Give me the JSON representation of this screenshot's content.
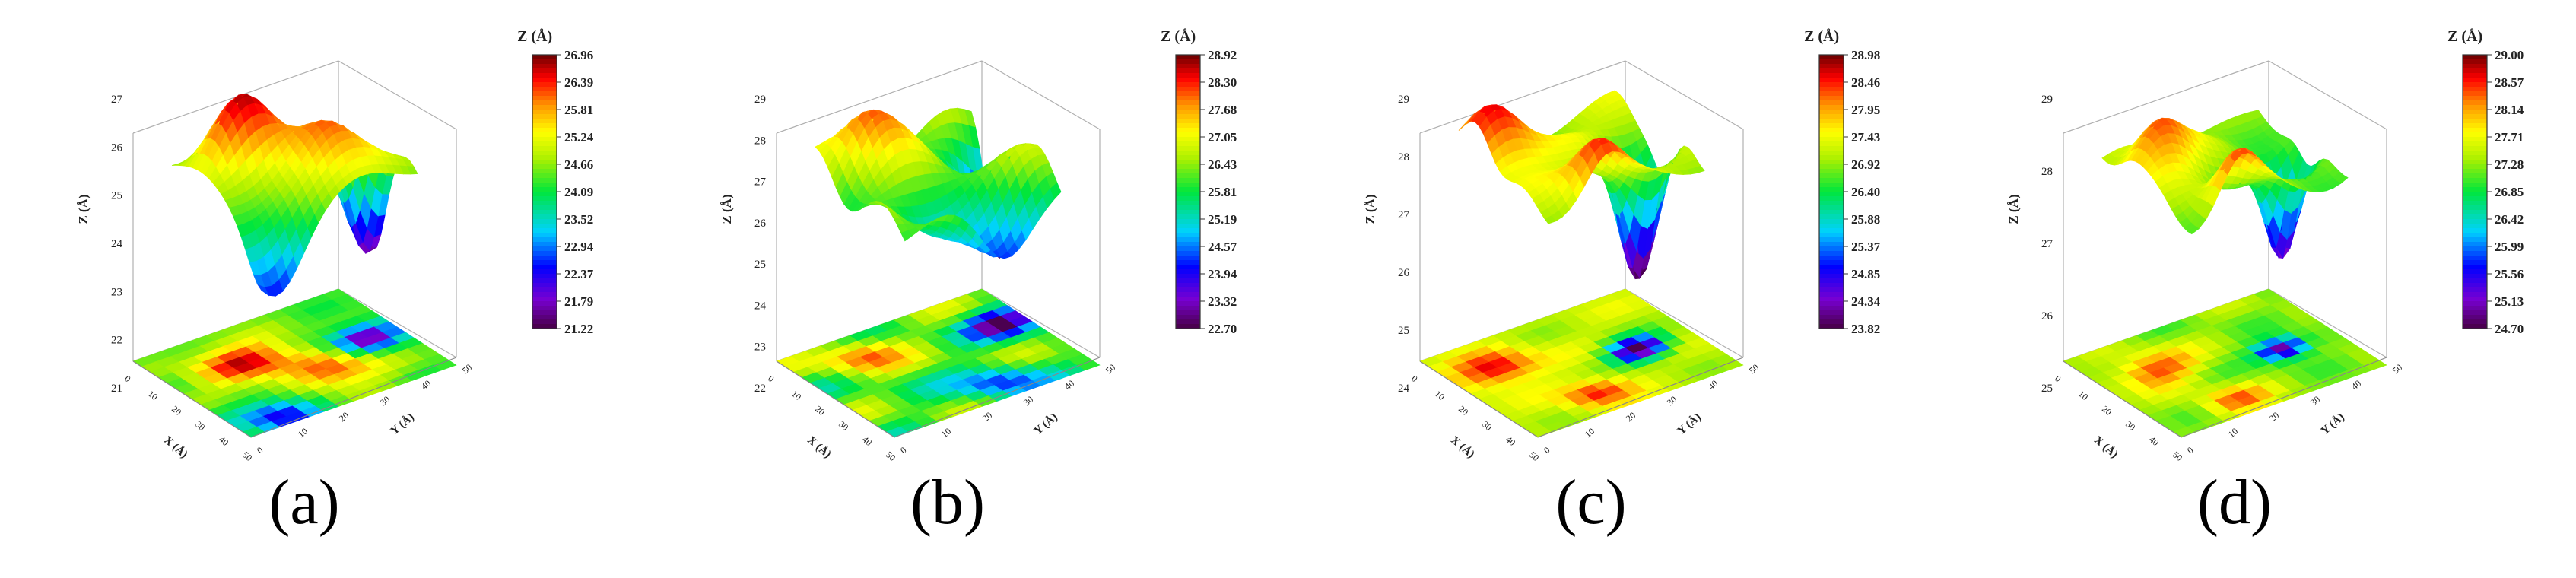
{
  "figure": {
    "panels": [
      {
        "label": "(a)",
        "colorbar_title": "Z (Å)",
        "zlabel": "Z (Å)",
        "xlabel": "X (Å)",
        "ylabel": "Y (Å)",
        "z_ticks": [
          "21",
          "22",
          "23",
          "24",
          "25",
          "26",
          "27"
        ],
        "colorbar_ticks": [
          "26.96",
          "26.39",
          "25.81",
          "25.24",
          "24.66",
          "24.09",
          "23.52",
          "22.94",
          "22.37",
          "21.79",
          "21.22"
        ]
      },
      {
        "label": "(b)",
        "colorbar_title": "Z (Å)",
        "zlabel": "Z (Å)",
        "xlabel": "X (Å)",
        "ylabel": "Y (Å)",
        "z_ticks": [
          "22",
          "23",
          "24",
          "25",
          "26",
          "27",
          "28",
          "29"
        ],
        "colorbar_ticks": [
          "28.92",
          "28.30",
          "27.68",
          "27.05",
          "26.43",
          "25.81",
          "25.19",
          "24.57",
          "23.94",
          "23.32",
          "22.70"
        ]
      },
      {
        "label": "(c)",
        "colorbar_title": "Z (Å)",
        "zlabel": "Z (Å)",
        "xlabel": "X (Å)",
        "ylabel": "Y (Å)",
        "z_ticks": [
          "24",
          "25",
          "26",
          "27",
          "28",
          "29"
        ],
        "colorbar_ticks": [
          "28.98",
          "28.46",
          "27.95",
          "27.43",
          "26.92",
          "26.40",
          "25.88",
          "25.37",
          "24.85",
          "24.34",
          "23.82"
        ]
      },
      {
        "label": "(d)",
        "colorbar_title": "Z (Å)",
        "zlabel": "Z (Å)",
        "xlabel": "X (Å)",
        "ylabel": "Y (Å)",
        "z_ticks": [
          "25",
          "26",
          "27",
          "28",
          "29"
        ],
        "colorbar_ticks": [
          "29.00",
          "28.57",
          "28.14",
          "27.71",
          "27.28",
          "26.85",
          "26.42",
          "25.99",
          "25.56",
          "25.13",
          "24.70"
        ]
      }
    ],
    "xy_ticks": [
      "0",
      "10",
      "20",
      "30",
      "40",
      "50"
    ]
  },
  "chart_data": [
    {
      "type": "heatmap",
      "subtype": "3d-surface-with-projected-contour",
      "panel": "(a)",
      "xlabel": "X (Å)",
      "ylabel": "Y (Å)",
      "zlabel": "Z (Å)",
      "x_range": [
        0,
        50
      ],
      "y_range": [
        0,
        50
      ],
      "zlim": [
        21,
        27
      ],
      "colorbar_title": "Z (Å)",
      "colorbar_range": [
        21.22,
        26.96
      ],
      "colorbar_levels": [
        26.96,
        26.39,
        25.81,
        25.24,
        24.66,
        24.09,
        23.52,
        22.94,
        22.37,
        21.79,
        21.22
      ]
    },
    {
      "type": "heatmap",
      "subtype": "3d-surface-with-projected-contour",
      "panel": "(b)",
      "xlabel": "X (Å)",
      "ylabel": "Y (Å)",
      "zlabel": "Z (Å)",
      "x_range": [
        0,
        50
      ],
      "y_range": [
        0,
        50
      ],
      "zlim": [
        22,
        29
      ],
      "colorbar_title": "Z (Å)",
      "colorbar_range": [
        22.7,
        28.92
      ],
      "colorbar_levels": [
        28.92,
        28.3,
        27.68,
        27.05,
        26.43,
        25.81,
        25.19,
        24.57,
        23.94,
        23.32,
        22.7
      ]
    },
    {
      "type": "heatmap",
      "subtype": "3d-surface-with-projected-contour",
      "panel": "(c)",
      "xlabel": "X (Å)",
      "ylabel": "Y (Å)",
      "zlabel": "Z (Å)",
      "x_range": [
        0,
        50
      ],
      "y_range": [
        0,
        50
      ],
      "zlim": [
        24,
        29
      ],
      "colorbar_title": "Z (Å)",
      "colorbar_range": [
        23.82,
        28.98
      ],
      "colorbar_levels": [
        28.98,
        28.46,
        27.95,
        27.43,
        26.92,
        26.4,
        25.88,
        25.37,
        24.85,
        24.34,
        23.82
      ]
    },
    {
      "type": "heatmap",
      "subtype": "3d-surface-with-projected-contour",
      "panel": "(d)",
      "xlabel": "X (Å)",
      "ylabel": "Y (Å)",
      "zlabel": "Z (Å)",
      "x_range": [
        0,
        50
      ],
      "y_range": [
        0,
        50
      ],
      "zlim": [
        25,
        29
      ],
      "colorbar_title": "Z (Å)",
      "colorbar_range": [
        24.7,
        29.0
      ],
      "colorbar_levels": [
        29.0,
        28.57,
        28.14,
        27.71,
        27.28,
        26.85,
        26.42,
        25.99,
        25.56,
        25.13,
        24.7
      ]
    }
  ]
}
